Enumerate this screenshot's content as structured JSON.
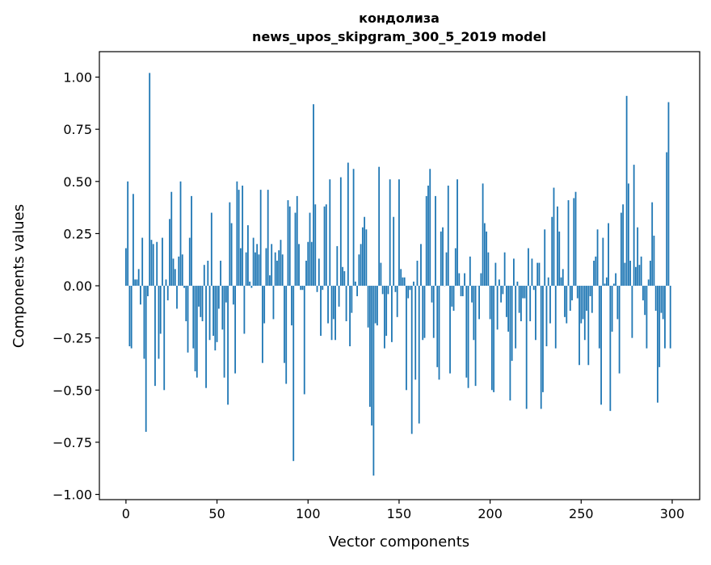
{
  "chart_data": {
    "type": "bar",
    "title": "кондолиза",
    "subtitle": "news_upos_skipgram_300_5_2019 model",
    "xlabel": "Vector components",
    "ylabel": "Components values",
    "xlim": [
      -14.6,
      315.1
    ],
    "ylim": [
      -1.025,
      1.122
    ],
    "xticks": [
      0,
      50,
      100,
      150,
      200,
      250,
      300
    ],
    "xtick_labels": [
      "0",
      "50",
      "100",
      "150",
      "200",
      "250",
      "300"
    ],
    "yticks": [
      -1.0,
      -0.75,
      -0.5,
      -0.25,
      0.0,
      0.25,
      0.5,
      0.75,
      1.0
    ],
    "ytick_labels": [
      "−1.00",
      "−0.75",
      "−0.50",
      "−0.25",
      "0.00",
      "0.25",
      "0.50",
      "0.75",
      "1.00"
    ],
    "grid": false,
    "color": "#1f77b4",
    "values": [
      0.18,
      0.5,
      -0.29,
      -0.3,
      0.44,
      0.03,
      0.03,
      0.08,
      -0.09,
      0.23,
      -0.35,
      -0.7,
      -0.05,
      1.02,
      0.22,
      0.2,
      -0.48,
      0.21,
      -0.35,
      -0.23,
      0.23,
      -0.5,
      0.03,
      -0.07,
      0.32,
      0.45,
      0.13,
      0.08,
      -0.11,
      0.14,
      0.5,
      0.15,
      -0.01,
      -0.17,
      -0.32,
      0.23,
      0.43,
      -0.3,
      -0.41,
      -0.44,
      -0.1,
      -0.15,
      -0.17,
      0.1,
      -0.49,
      0.12,
      -0.26,
      0.35,
      -0.24,
      -0.31,
      -0.27,
      -0.11,
      0.12,
      -0.21,
      -0.44,
      -0.08,
      -0.57,
      0.4,
      0.3,
      -0.09,
      -0.42,
      0.5,
      0.46,
      0.18,
      0.48,
      -0.23,
      0.16,
      0.29,
      0.02,
      -0.01,
      0.23,
      0.16,
      0.2,
      0.15,
      0.46,
      -0.37,
      -0.18,
      0.18,
      0.46,
      0.05,
      0.2,
      -0.16,
      0.16,
      0.12,
      0.17,
      0.22,
      0.15,
      -0.37,
      -0.47,
      0.41,
      0.38,
      -0.19,
      -0.84,
      0.35,
      0.43,
      0.2,
      -0.02,
      -0.02,
      -0.52,
      0.12,
      0.21,
      0.35,
      0.21,
      0.87,
      0.39,
      -0.03,
      0.13,
      -0.24,
      -0.02,
      0.38,
      0.39,
      -0.18,
      0.51,
      -0.26,
      -0.16,
      -0.26,
      0.19,
      -0.1,
      0.52,
      0.09,
      0.07,
      -0.17,
      0.59,
      -0.29,
      -0.13,
      0.56,
      0.02,
      -0.05,
      0.15,
      0.2,
      0.28,
      0.33,
      0.27,
      -0.2,
      -0.58,
      -0.67,
      -0.91,
      -0.18,
      -0.19,
      0.57,
      0.11,
      -0.04,
      -0.3,
      -0.24,
      -0.04,
      0.51,
      -0.27,
      0.33,
      -0.03,
      -0.15,
      0.51,
      0.08,
      0.04,
      0.04,
      -0.5,
      -0.06,
      -0.02,
      -0.71,
      0.02,
      -0.45,
      0.12,
      -0.66,
      0.2,
      -0.26,
      -0.25,
      0.43,
      0.48,
      0.56,
      -0.08,
      -0.25,
      0.43,
      -0.39,
      -0.45,
      0.26,
      0.28,
      0.0,
      0.16,
      0.48,
      -0.42,
      -0.1,
      -0.12,
      0.18,
      0.51,
      0.06,
      -0.05,
      -0.05,
      0.06,
      -0.44,
      -0.49,
      0.14,
      -0.08,
      -0.26,
      -0.48,
      0.0,
      -0.16,
      0.06,
      0.49,
      0.3,
      0.26,
      0.16,
      -0.16,
      -0.5,
      -0.51,
      0.11,
      -0.21,
      0.03,
      -0.08,
      -0.04,
      0.16,
      -0.15,
      -0.22,
      -0.55,
      -0.36,
      0.13,
      -0.3,
      0.02,
      -0.13,
      -0.17,
      -0.06,
      -0.06,
      -0.59,
      0.18,
      -0.17,
      0.13,
      -0.02,
      -0.26,
      0.11,
      0.11,
      -0.59,
      -0.51,
      0.27,
      -0.29,
      0.04,
      -0.18,
      0.33,
      0.47,
      -0.3,
      0.38,
      0.26,
      0.04,
      0.08,
      -0.15,
      -0.18,
      0.41,
      -0.12,
      -0.07,
      0.42,
      0.45,
      -0.06,
      -0.38,
      -0.18,
      -0.16,
      -0.26,
      -0.12,
      -0.38,
      -0.05,
      -0.13,
      0.12,
      0.14,
      0.27,
      -0.3,
      -0.57,
      0.23,
      0.01,
      0.04,
      0.3,
      -0.6,
      -0.22,
      0.01,
      0.06,
      -0.16,
      -0.42,
      0.35,
      0.39,
      0.11,
      0.91,
      0.49,
      0.12,
      -0.25,
      0.58,
      0.09,
      0.28,
      0.1,
      0.14,
      -0.07,
      -0.14,
      -0.3,
      0.03,
      0.12,
      0.4,
      0.24,
      -0.12,
      -0.56,
      -0.39,
      -0.13,
      -0.16,
      -0.3,
      0.64,
      0.88,
      -0.3
    ]
  }
}
